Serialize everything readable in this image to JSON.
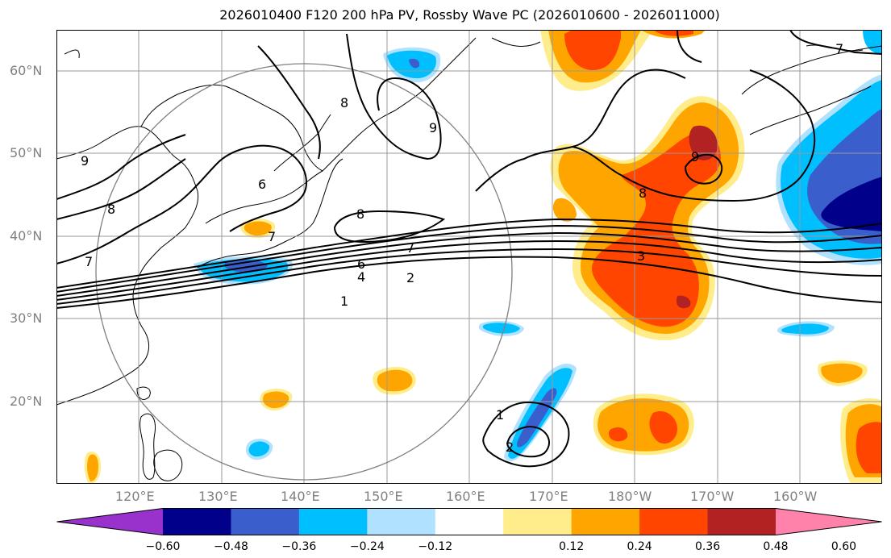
{
  "title": "2026010400 F120 200 hPa PV, Rossby Wave PC (2026010600 - 2026011000)",
  "axes": {
    "lat_labels": [
      "60°N",
      "50°N",
      "40°N",
      "30°N",
      "20°N"
    ],
    "lon_labels": [
      "120°E",
      "130°E",
      "140°E",
      "150°E",
      "160°E",
      "170°E",
      "180°W",
      "170°W",
      "160°W"
    ]
  },
  "contour_labels": [
    "9",
    "8",
    "8",
    "6",
    "7",
    "7",
    "8",
    "9",
    "6",
    "7",
    "4",
    "2",
    "1",
    "8",
    "9",
    "3",
    "7",
    "1",
    "2"
  ],
  "colorbar": {
    "ticks": [
      "−0.60",
      "−0.48",
      "−0.36",
      "−0.24",
      "−0.12",
      "0.12",
      "0.24",
      "0.36",
      "0.48",
      "0.60"
    ],
    "colors": [
      "#9932cc",
      "#00008b",
      "#3a5fcd",
      "#00bfff",
      "#b0e2ff",
      "#ffffff",
      "#ffec8b",
      "#ffa500",
      "#ff4500",
      "#b22222",
      "#ff82ab"
    ]
  },
  "chart_data": {
    "type": "map",
    "variable": "200 hPa PV contours with Rossby Wave PC shading",
    "region": {
      "lon_range": [
        "110°E",
        "150°W"
      ],
      "lat_range": [
        "10°N",
        "65°N"
      ]
    },
    "contour_values": [
      1,
      2,
      3,
      4,
      6,
      7,
      8,
      9
    ],
    "shading_levels": [
      -0.6,
      -0.48,
      -0.36,
      -0.24,
      -0.12,
      0.12,
      0.24,
      0.36,
      0.48,
      0.6
    ]
  }
}
